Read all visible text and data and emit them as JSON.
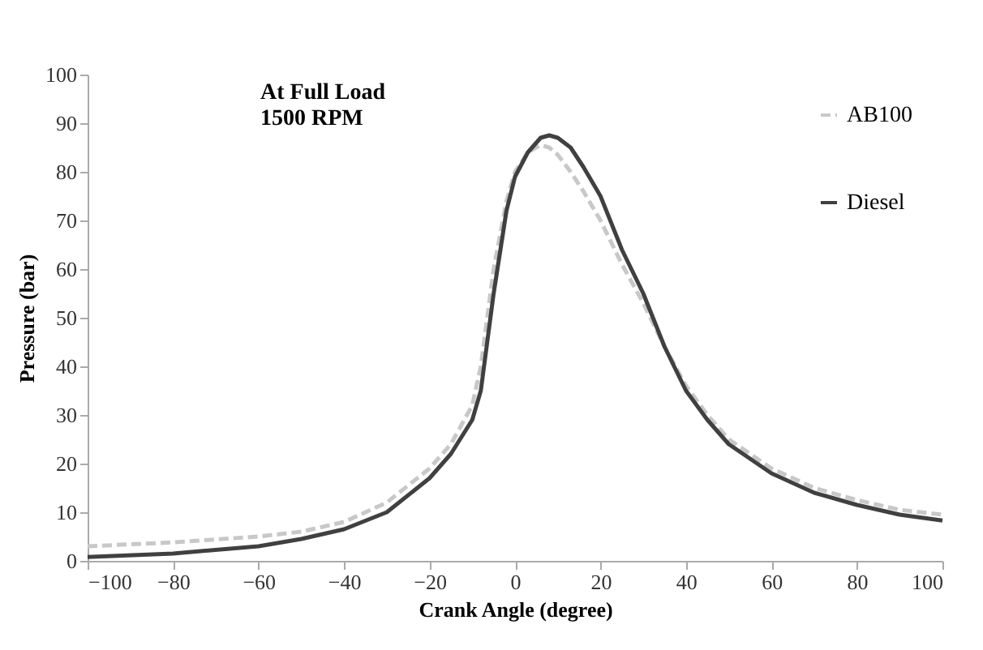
{
  "chart_data": {
    "type": "line",
    "title": "At Full Load\n1500 RPM",
    "xlabel": "Crank Angle (degree)",
    "ylabel": "Pressure (bar)",
    "x": [
      -100,
      -80,
      -60,
      -50,
      -40,
      -30,
      -20,
      -15,
      -10,
      -8,
      -5,
      -2,
      0,
      3,
      6,
      8,
      10,
      13,
      16,
      20,
      25,
      30,
      35,
      40,
      45,
      50,
      60,
      70,
      80,
      90,
      100
    ],
    "series": [
      {
        "name": "AB100",
        "color": "#c8c8c8",
        "line_style": "dashed",
        "values": [
          3,
          3.8,
          5,
          6,
          8,
          12,
          19,
          24,
          32,
          40,
          60,
          74,
          80,
          84,
          85.5,
          85,
          83.5,
          80,
          76,
          70,
          61,
          53,
          44,
          36,
          30,
          25,
          19,
          15,
          12.5,
          10.5,
          9.5
        ]
      },
      {
        "name": "Diesel",
        "color": "#404040",
        "line_style": "solid",
        "values": [
          0.8,
          1.5,
          3,
          4.5,
          6.5,
          10,
          17,
          22,
          29,
          35,
          55,
          72,
          79,
          84,
          87,
          87.5,
          87,
          85,
          81,
          75,
          64,
          55,
          44,
          35,
          29,
          24,
          18,
          14,
          11.5,
          9.5,
          8.3
        ]
      }
    ],
    "xlim": [
      -100,
      100
    ],
    "xticks": [
      -100,
      -80,
      -60,
      -40,
      -20,
      0,
      20,
      40,
      60,
      80,
      100
    ],
    "ylim": [
      0,
      100
    ],
    "yticks": [
      0,
      10,
      20,
      30,
      40,
      50,
      60,
      70,
      80,
      90,
      100
    ],
    "grid": false,
    "legend": "top right",
    "marker": "none"
  }
}
